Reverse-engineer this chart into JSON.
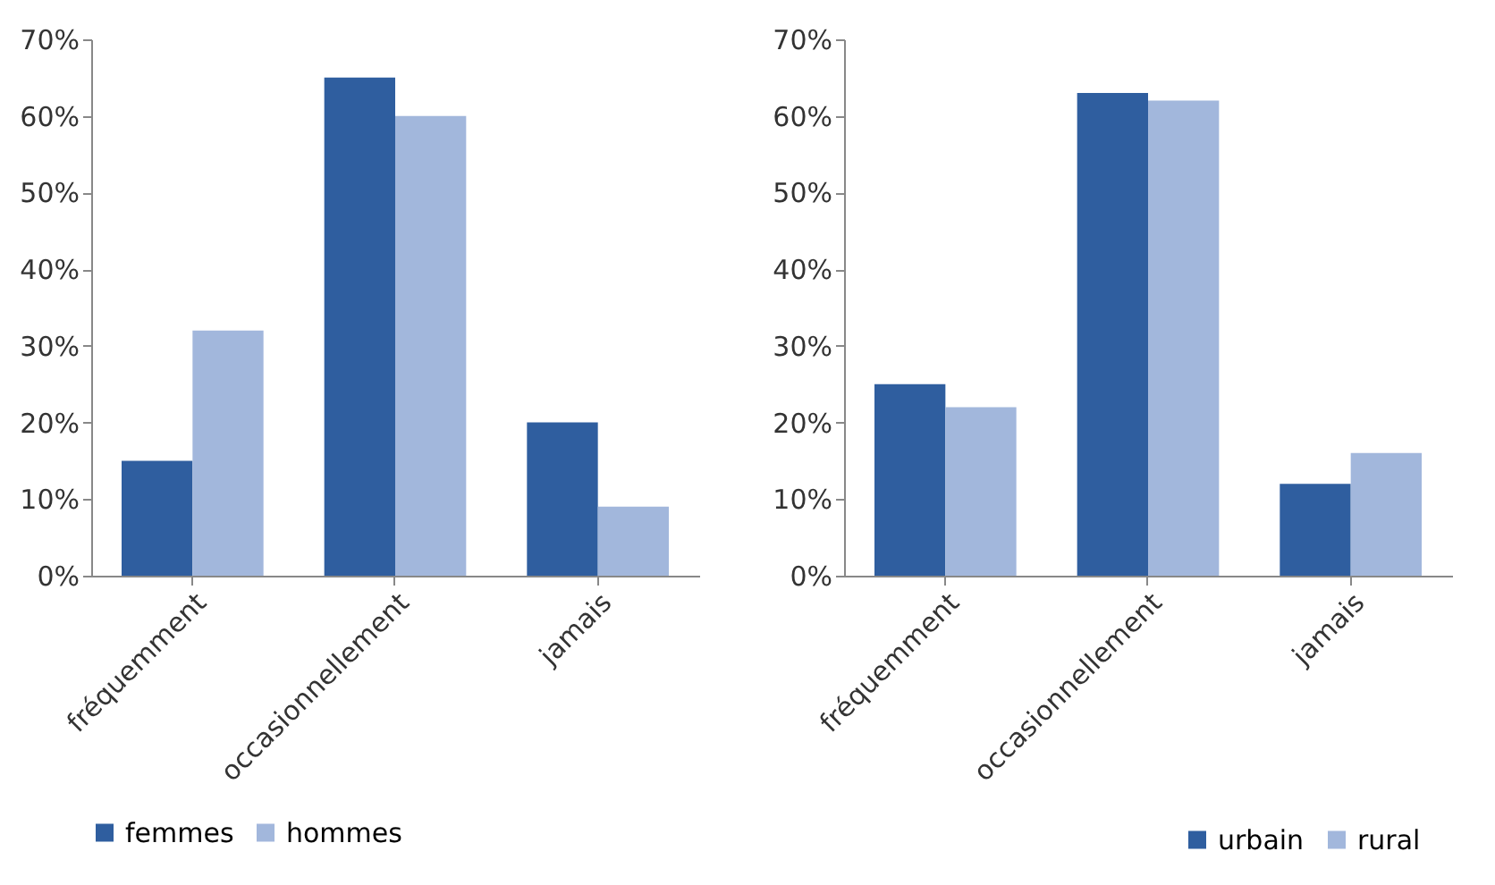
{
  "chart_data": [
    {
      "type": "bar",
      "categories": [
        "fréquemment",
        "occasionnellement",
        "jamais"
      ],
      "series": [
        {
          "name": "femmes",
          "color": "#2f5e9f",
          "values": [
            15,
            65,
            20
          ]
        },
        {
          "name": "hommes",
          "color": "#a2b7dc",
          "values": [
            32,
            60,
            9
          ]
        }
      ],
      "ylim": [
        0,
        70
      ],
      "yticks": [
        {
          "value": 0,
          "label": "0%"
        },
        {
          "value": 10,
          "label": "10%"
        },
        {
          "value": 20,
          "label": "20%"
        },
        {
          "value": 30,
          "label": "30%"
        },
        {
          "value": 40,
          "label": "40%"
        },
        {
          "value": 50,
          "label": "50%"
        },
        {
          "value": 60,
          "label": "60%"
        },
        {
          "value": 70,
          "label": "70%"
        }
      ],
      "grid": false,
      "legend": "bottom"
    },
    {
      "type": "bar",
      "categories": [
        "fréquemment",
        "occasionnellement",
        "jamais"
      ],
      "series": [
        {
          "name": "urbain",
          "color": "#2f5e9f",
          "values": [
            25,
            63,
            12
          ]
        },
        {
          "name": "rural",
          "color": "#a2b7dc",
          "values": [
            22,
            62,
            16
          ]
        }
      ],
      "ylim": [
        0,
        70
      ],
      "yticks": [
        {
          "value": 0,
          "label": "0%"
        },
        {
          "value": 10,
          "label": "10%"
        },
        {
          "value": 20,
          "label": "20%"
        },
        {
          "value": 30,
          "label": "30%"
        },
        {
          "value": 40,
          "label": "40%"
        },
        {
          "value": 50,
          "label": "50%"
        },
        {
          "value": 60,
          "label": "60%"
        },
        {
          "value": 70,
          "label": "70%"
        }
      ],
      "grid": false,
      "legend": "bottom right"
    }
  ]
}
